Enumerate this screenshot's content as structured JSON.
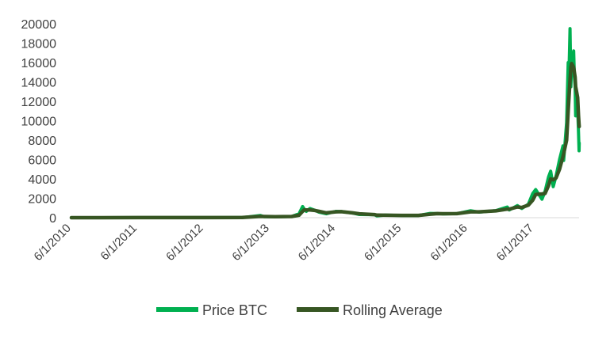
{
  "chart_data": {
    "type": "line",
    "title": "",
    "xlabel": "",
    "ylabel": "",
    "ylim": [
      0,
      20000
    ],
    "yticks": [
      0,
      2000,
      4000,
      6000,
      8000,
      10000,
      12000,
      14000,
      16000,
      18000,
      20000
    ],
    "xlim": [
      "6/1/2010",
      "2/5/2018"
    ],
    "xticks": [
      "6/1/2010",
      "6/1/2011",
      "6/1/2012",
      "6/1/2013",
      "6/1/2014",
      "6/1/2015",
      "6/1/2016",
      "6/1/2017"
    ],
    "grid": false,
    "legend_position": "bottom",
    "series": [
      {
        "name": "Price BTC",
        "color": "#00b050",
        "points": [
          [
            "6/1/2010",
            0
          ],
          [
            "6/1/2011",
            10
          ],
          [
            "6/1/2012",
            5
          ],
          [
            "1/1/2013",
            13
          ],
          [
            "4/10/2013",
            230
          ],
          [
            "5/1/2013",
            110
          ],
          [
            "7/1/2013",
            90
          ],
          [
            "10/1/2013",
            130
          ],
          [
            "11/10/2013",
            400
          ],
          [
            "11/30/2013",
            1150
          ],
          [
            "12/10/2013",
            850
          ],
          [
            "12/20/2013",
            650
          ],
          [
            "1/10/2014",
            950
          ],
          [
            "2/1/2014",
            800
          ],
          [
            "3/1/2014",
            560
          ],
          [
            "4/10/2014",
            400
          ],
          [
            "6/1/2014",
            650
          ],
          [
            "7/1/2014",
            640
          ],
          [
            "9/1/2014",
            480
          ],
          [
            "10/10/2014",
            330
          ],
          [
            "1/1/2015",
            310
          ],
          [
            "1/15/2015",
            180
          ],
          [
            "3/1/2015",
            270
          ],
          [
            "6/1/2015",
            230
          ],
          [
            "9/1/2015",
            230
          ],
          [
            "11/5/2015",
            440
          ],
          [
            "12/15/2015",
            430
          ],
          [
            "1/15/2016",
            380
          ],
          [
            "4/1/2016",
            420
          ],
          [
            "6/15/2016",
            720
          ],
          [
            "8/1/2016",
            570
          ],
          [
            "11/1/2016",
            730
          ],
          [
            "1/4/2017",
            1100
          ],
          [
            "1/15/2017",
            800
          ],
          [
            "3/1/2017",
            1250
          ],
          [
            "3/25/2017",
            950
          ],
          [
            "5/1/2017",
            1400
          ],
          [
            "5/25/2017",
            2500
          ],
          [
            "6/10/2017",
            2900
          ],
          [
            "7/15/2017",
            1900
          ],
          [
            "8/1/2017",
            2700
          ],
          [
            "8/20/2017",
            4200
          ],
          [
            "9/1/2017",
            4800
          ],
          [
            "9/15/2017",
            3200
          ],
          [
            "10/1/2017",
            4300
          ],
          [
            "10/20/2017",
            6000
          ],
          [
            "11/8/2017",
            7400
          ],
          [
            "11/12/2017",
            5900
          ],
          [
            "11/28/2017",
            9800
          ],
          [
            "12/7/2017",
            16000
          ],
          [
            "12/10/2017",
            14000
          ],
          [
            "12/17/2017",
            19500
          ],
          [
            "12/22/2017",
            13500
          ],
          [
            "12/26/2017",
            16000
          ],
          [
            "1/6/2018",
            17200
          ],
          [
            "1/10/2018",
            14500
          ],
          [
            "1/14/2018",
            13600
          ],
          [
            "1/17/2018",
            10500
          ],
          [
            "1/20/2018",
            12800
          ],
          [
            "1/28/2018",
            11400
          ],
          [
            "2/2/2018",
            8800
          ],
          [
            "2/5/2018",
            6900
          ],
          [
            "2/6/2018",
            7700
          ]
        ]
      },
      {
        "name": "Rolling Average",
        "color": "#375623",
        "points": [
          [
            "6/1/2010",
            0
          ],
          [
            "6/1/2011",
            10
          ],
          [
            "6/1/2012",
            5
          ],
          [
            "1/1/2013",
            13
          ],
          [
            "4/10/2013",
            130
          ],
          [
            "5/1/2013",
            120
          ],
          [
            "7/1/2013",
            100
          ],
          [
            "10/1/2013",
            125
          ],
          [
            "11/10/2013",
            250
          ],
          [
            "11/30/2013",
            650
          ],
          [
            "12/10/2013",
            820
          ],
          [
            "12/20/2013",
            790
          ],
          [
            "1/10/2014",
            800
          ],
          [
            "2/1/2014",
            760
          ],
          [
            "3/1/2014",
            650
          ],
          [
            "4/10/2014",
            500
          ],
          [
            "6/1/2014",
            600
          ],
          [
            "7/1/2014",
            620
          ],
          [
            "9/1/2014",
            500
          ],
          [
            "10/10/2014",
            400
          ],
          [
            "1/1/2015",
            320
          ],
          [
            "1/15/2015",
            260
          ],
          [
            "3/1/2015",
            250
          ],
          [
            "6/1/2015",
            235
          ],
          [
            "9/1/2015",
            235
          ],
          [
            "11/5/2015",
            360
          ],
          [
            "12/15/2015",
            420
          ],
          [
            "1/15/2016",
            410
          ],
          [
            "4/1/2016",
            420
          ],
          [
            "6/15/2016",
            600
          ],
          [
            "8/1/2016",
            600
          ],
          [
            "11/1/2016",
            700
          ],
          [
            "1/4/2017",
            880
          ],
          [
            "1/15/2017",
            880
          ],
          [
            "3/1/2017",
            1100
          ],
          [
            "3/25/2017",
            1050
          ],
          [
            "5/1/2017",
            1300
          ],
          [
            "5/25/2017",
            1800
          ],
          [
            "6/10/2017",
            2400
          ],
          [
            "7/15/2017",
            2450
          ],
          [
            "8/1/2017",
            2500
          ],
          [
            "8/20/2017",
            3300
          ],
          [
            "9/1/2017",
            4000
          ],
          [
            "9/15/2017",
            3900
          ],
          [
            "10/1/2017",
            4100
          ],
          [
            "10/20/2017",
            5000
          ],
          [
            "11/8/2017",
            6300
          ],
          [
            "11/12/2017",
            6600
          ],
          [
            "11/28/2017",
            8000
          ],
          [
            "12/7/2017",
            11000
          ],
          [
            "12/10/2017",
            12000
          ],
          [
            "12/17/2017",
            14200
          ],
          [
            "12/22/2017",
            15500
          ],
          [
            "12/26/2017",
            15900
          ],
          [
            "1/6/2018",
            15500
          ],
          [
            "1/10/2018",
            15000
          ],
          [
            "1/14/2018",
            14500
          ],
          [
            "1/17/2018",
            13500
          ],
          [
            "1/20/2018",
            13200
          ],
          [
            "1/28/2018",
            12400
          ],
          [
            "2/2/2018",
            10500
          ],
          [
            "2/5/2018",
            9600
          ],
          [
            "2/6/2018",
            9400
          ]
        ]
      }
    ]
  }
}
